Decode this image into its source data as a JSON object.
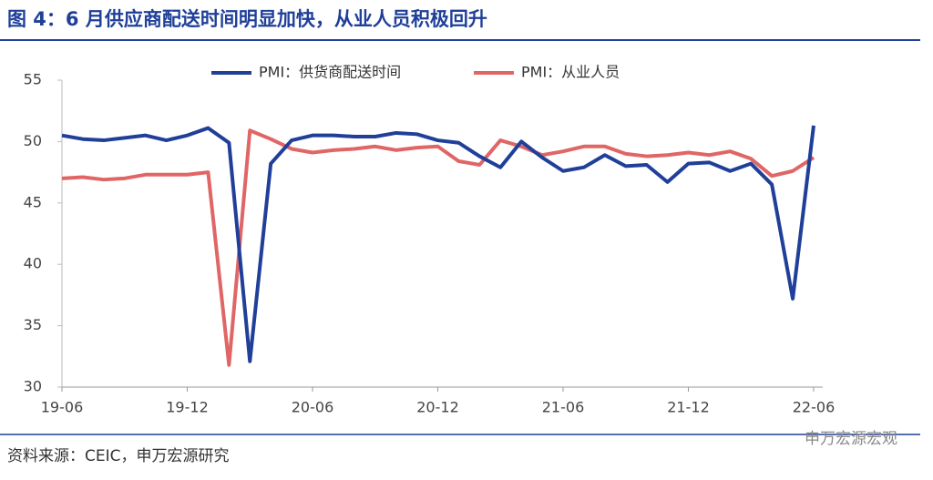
{
  "chart_data": {
    "type": "line",
    "title": "图 4：6 月供应商配送时间明显加快，从业人员积极回升",
    "source": "资料来源：CEIC，申万宏源研究",
    "watermark": "申万宏源宏观",
    "categories": [
      "19-06",
      null,
      null,
      null,
      null,
      null,
      "19-12",
      null,
      null,
      null,
      null,
      null,
      "20-06",
      null,
      null,
      null,
      null,
      null,
      "20-12",
      null,
      null,
      null,
      null,
      null,
      "21-06",
      null,
      null,
      null,
      null,
      null,
      "21-12",
      null,
      null,
      null,
      null,
      null,
      "22-06"
    ],
    "series": [
      {
        "name": "PMI：供货商配送时间",
        "color": "#1f3f99",
        "values": [
          50.5,
          50.2,
          50.1,
          50.3,
          50.5,
          50.1,
          50.5,
          51.1,
          49.9,
          32.1,
          48.2,
          50.1,
          50.5,
          50.5,
          50.4,
          50.4,
          50.7,
          50.6,
          50.1,
          49.9,
          48.8,
          47.9,
          50.0,
          48.7,
          47.6,
          47.9,
          48.9,
          48.0,
          48.1,
          46.7,
          48.2,
          48.3,
          47.6,
          48.2,
          46.5,
          37.2,
          51.3
        ]
      },
      {
        "name": "PMI：从业人员",
        "color": "#e06666",
        "values": [
          47.0,
          47.1,
          46.9,
          47.0,
          47.3,
          47.3,
          47.3,
          47.5,
          31.8,
          50.9,
          50.2,
          49.4,
          49.1,
          49.3,
          49.4,
          49.6,
          49.3,
          49.5,
          49.6,
          48.4,
          48.1,
          50.1,
          49.6,
          48.9,
          49.2,
          49.6,
          49.6,
          49.0,
          48.8,
          48.9,
          49.1,
          48.9,
          49.2,
          48.6,
          47.2,
          47.6,
          48.7
        ]
      }
    ],
    "ylim": [
      30,
      55
    ],
    "yticks": [
      30,
      35,
      40,
      45,
      50,
      55
    ]
  }
}
